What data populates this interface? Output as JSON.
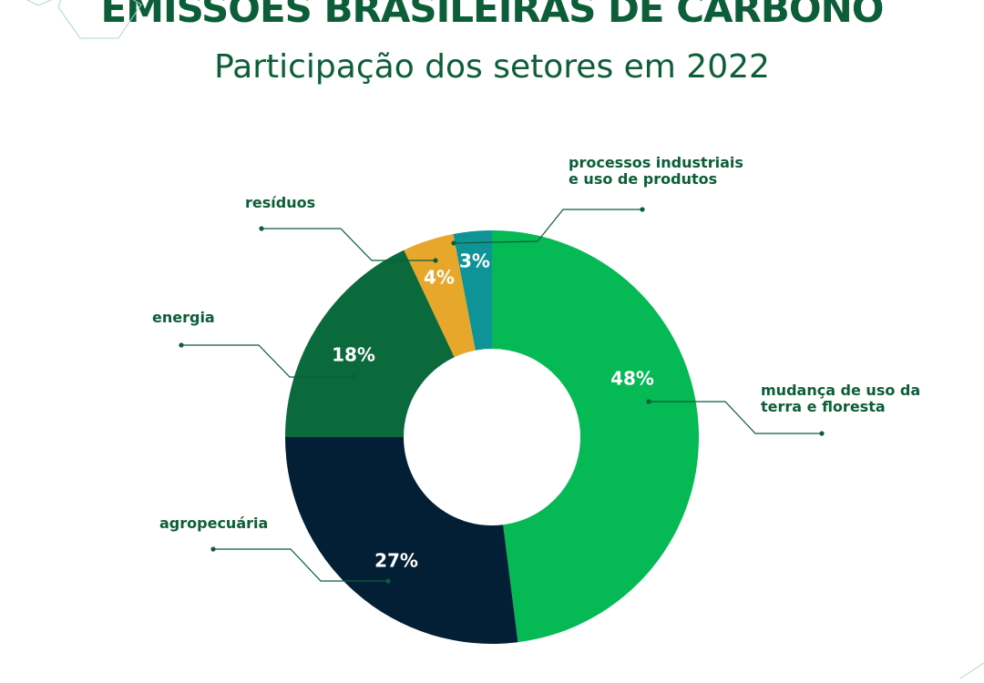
{
  "header": {
    "title": "EMISSÕES BRASILEIRAS DE CARBONO",
    "subtitle": "Participação dos setores em 2022"
  },
  "chart_data": {
    "type": "pie",
    "title": "EMISSÕES BRASILEIRAS DE CARBONO",
    "subtitle": "Participação dos setores em 2022",
    "donut": true,
    "categories": [
      "mudança de uso da terra e floresta",
      "agropecuária",
      "energia",
      "resíduos",
      "processos industriais e uso de produtos"
    ],
    "values": [
      48,
      27,
      18,
      4,
      3
    ],
    "value_labels": [
      "48%",
      "27%",
      "18%",
      "4%",
      "3%"
    ],
    "label_lines": [
      [
        "mudança de uso da",
        "terra e floresta"
      ],
      [
        "agropecuária"
      ],
      [
        "energia"
      ],
      [
        "resíduos"
      ],
      [
        "processos  industriais",
        "e uso de produtos"
      ]
    ],
    "colors": [
      "#05b955",
      "#031f35",
      "#0b6a3c",
      "#e6a72a",
      "#0e9496"
    ],
    "line_color": "#0b5e38",
    "label_color": "#0b5e38"
  }
}
